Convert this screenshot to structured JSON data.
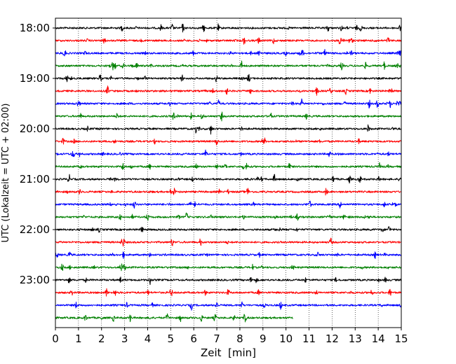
{
  "chart_data": {
    "type": "line",
    "title": "",
    "xlabel": "Zeit  [min]",
    "ylabel": "UTC (Lokalzeit = UTC + 02:00)",
    "xlim": [
      0,
      15
    ],
    "x_ticks": [
      "0",
      "1",
      "2",
      "3",
      "4",
      "5",
      "6",
      "7",
      "8",
      "9",
      "10",
      "11",
      "12",
      "13",
      "14",
      "15"
    ],
    "y_ticks": [
      "18:00",
      "19:00",
      "20:00",
      "21:00",
      "22:00",
      "23:00"
    ],
    "grid": "vertical dotted lines at each minute",
    "line_colors": [
      "#000000",
      "#ff0000",
      "#0000ff",
      "#008000"
    ],
    "traces": [
      {
        "start": "18:00",
        "end_min": 15
      },
      {
        "start": "18:15",
        "end_min": 15
      },
      {
        "start": "18:30",
        "end_min": 15
      },
      {
        "start": "18:45",
        "end_min": 15
      },
      {
        "start": "19:00",
        "end_min": 15
      },
      {
        "start": "19:15",
        "end_min": 15
      },
      {
        "start": "19:30",
        "end_min": 15
      },
      {
        "start": "19:45",
        "end_min": 15
      },
      {
        "start": "20:00",
        "end_min": 15
      },
      {
        "start": "20:15",
        "end_min": 15
      },
      {
        "start": "20:30",
        "end_min": 15
      },
      {
        "start": "20:45",
        "end_min": 15
      },
      {
        "start": "21:00",
        "end_min": 15
      },
      {
        "start": "21:15",
        "end_min": 15
      },
      {
        "start": "21:30",
        "end_min": 15
      },
      {
        "start": "21:45",
        "end_min": 15
      },
      {
        "start": "22:00",
        "end_min": 15
      },
      {
        "start": "22:15",
        "end_min": 15
      },
      {
        "start": "22:30",
        "end_min": 15
      },
      {
        "start": "22:45",
        "end_min": 15
      },
      {
        "start": "23:00",
        "end_min": 15
      },
      {
        "start": "23:15",
        "end_min": 15
      },
      {
        "start": "23:30",
        "end_min": 15
      },
      {
        "start": "23:45",
        "end_min": 10.3
      }
    ]
  }
}
